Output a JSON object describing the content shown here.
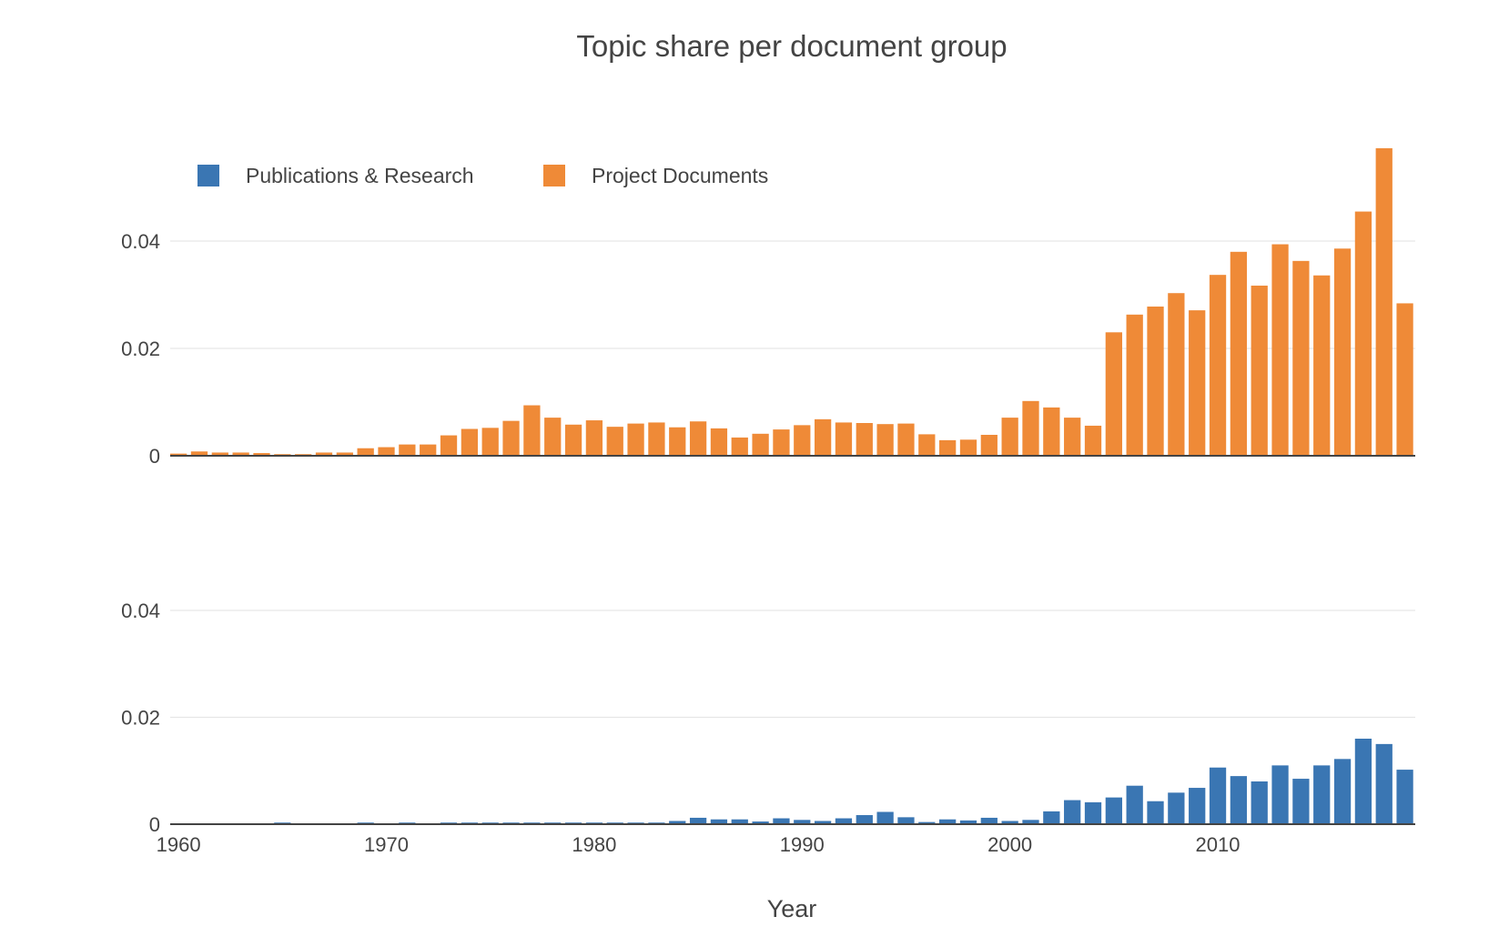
{
  "chart_data": {
    "type": "bar",
    "title": "Topic share per document group",
    "xlabel": "Year",
    "ylabel": "",
    "x": [
      1960,
      1961,
      1962,
      1963,
      1964,
      1965,
      1966,
      1967,
      1968,
      1969,
      1970,
      1971,
      1972,
      1973,
      1974,
      1975,
      1976,
      1977,
      1978,
      1979,
      1980,
      1981,
      1982,
      1983,
      1984,
      1985,
      1986,
      1987,
      1988,
      1989,
      1990,
      1991,
      1992,
      1993,
      1994,
      1995,
      1996,
      1997,
      1998,
      1999,
      2000,
      2001,
      2002,
      2003,
      2004,
      2005,
      2006,
      2007,
      2008,
      2009,
      2010,
      2011,
      2012,
      2013,
      2014,
      2015,
      2016,
      2017,
      2018,
      2019
    ],
    "xlim": [
      1959.6,
      2019.5
    ],
    "x_ticks": [
      "1960",
      "1970",
      "1980",
      "1990",
      "2000",
      "2010"
    ],
    "y_ticks": [
      "0",
      "0.02",
      "0.04"
    ],
    "ylim": [
      0,
      0.058
    ],
    "grid": true,
    "legend_position": "top-left",
    "panels": [
      {
        "series": "Project Documents",
        "position": "top"
      },
      {
        "series": "Publications & Research",
        "position": "bottom"
      }
    ],
    "series": [
      {
        "name": "Publications & Research",
        "color": "#3a76b3",
        "values": [
          0,
          0,
          0,
          0,
          0,
          0.0003,
          0,
          0,
          0,
          0.0003,
          0,
          0.0003,
          0,
          0.0003,
          0.0003,
          0.0003,
          0.0003,
          0.0003,
          0.0003,
          0.0003,
          0.0003,
          0.0003,
          0.0003,
          0.0003,
          0.0006,
          0.0012,
          0.0009,
          0.0009,
          0.0005,
          0.0011,
          0.0008,
          0.0006,
          0.0011,
          0.0017,
          0.0023,
          0.0013,
          0.0004,
          0.0009,
          0.0007,
          0.0012,
          0.0006,
          0.0008,
          0.0024,
          0.0045,
          0.0041,
          0.005,
          0.0072,
          0.0043,
          0.0059,
          0.0068,
          0.0106,
          0.009,
          0.008,
          0.011,
          0.0085,
          0.011,
          0.0122,
          0.016,
          0.015,
          0.0102
        ]
      },
      {
        "name": "Project Documents",
        "color": "#ef8a37",
        "values": [
          0.0004,
          0.0008,
          0.0006,
          0.0006,
          0.0005,
          0.0003,
          0.0003,
          0.0006,
          0.0006,
          0.0014,
          0.0016,
          0.0021,
          0.0021,
          0.0038,
          0.005,
          0.0052,
          0.0065,
          0.0094,
          0.0071,
          0.0058,
          0.0066,
          0.0054,
          0.006,
          0.0062,
          0.0053,
          0.0064,
          0.0051,
          0.0034,
          0.0041,
          0.0049,
          0.0057,
          0.0068,
          0.0062,
          0.0061,
          0.0059,
          0.006,
          0.004,
          0.0029,
          0.003,
          0.0039,
          0.0071,
          0.0102,
          0.009,
          0.0071,
          0.0056,
          0.023,
          0.0263,
          0.0278,
          0.0303,
          0.0271,
          0.0337,
          0.038,
          0.0317,
          0.0394,
          0.0363,
          0.0336,
          0.0386,
          0.0455,
          0.0573,
          0.0284
        ]
      }
    ]
  }
}
